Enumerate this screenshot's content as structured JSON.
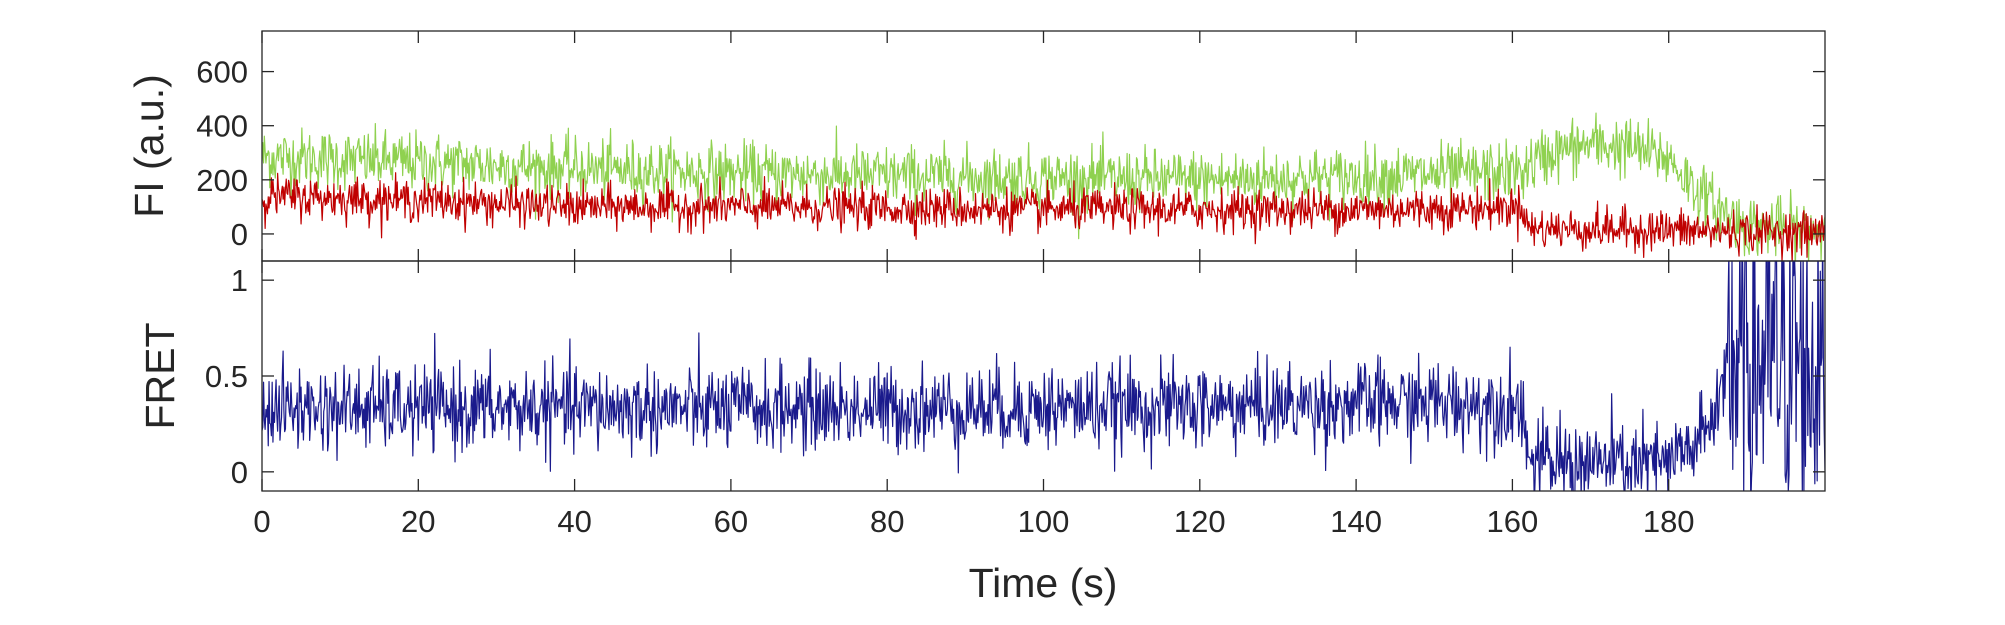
{
  "chart_data": [
    {
      "panel": "top",
      "type": "line",
      "xlabel": "",
      "ylabel": "FI (a.u.)",
      "xlim": [
        0,
        200
      ],
      "ylim": [
        -100,
        750
      ],
      "xticks": [
        0,
        20,
        40,
        60,
        80,
        100,
        120,
        140,
        160,
        180
      ],
      "yticks": [
        0,
        200,
        400,
        600
      ],
      "ytick_labels": [
        "0",
        "200",
        "400",
        "600"
      ],
      "show_xtick_labels": false,
      "grid": false,
      "sample_interval": 0.1,
      "series": [
        {
          "color": "#8fd14f",
          "x": [
            0,
            20,
            40,
            60,
            80,
            100,
            120,
            140,
            150,
            155,
            161,
            165,
            170,
            175,
            180,
            183,
            186,
            190,
            195,
            200
          ],
          "y": [
            285,
            265,
            240,
            225,
            215,
            205,
            200,
            210,
            220,
            225,
            230,
            300,
            330,
            320,
            280,
            180,
            100,
            30,
            20,
            15
          ],
          "noise": 55
        },
        {
          "color": "#c00000",
          "x": [
            0,
            20,
            40,
            60,
            80,
            100,
            120,
            140,
            155,
            161.5,
            162,
            180,
            185,
            200
          ],
          "y": [
            140,
            125,
            100,
            100,
            95,
            90,
            90,
            90,
            95,
            100,
            20,
            15,
            10,
            5
          ],
          "noise": 38
        }
      ]
    },
    {
      "panel": "bottom",
      "type": "line",
      "xlabel": "Time (s)",
      "ylabel": "FRET",
      "xlim": [
        0,
        200
      ],
      "ylim": [
        -0.1,
        1.1
      ],
      "xticks": [
        0,
        20,
        40,
        60,
        80,
        100,
        120,
        140,
        160,
        180
      ],
      "xtick_labels": [
        "0",
        "20",
        "40",
        "60",
        "80",
        "100",
        "120",
        "140",
        "160",
        "180"
      ],
      "yticks": [
        0,
        0.5,
        1
      ],
      "ytick_labels": [
        "0",
        "0.5",
        "1"
      ],
      "grid": false,
      "sample_interval": 0.1,
      "series": [
        {
          "color": "#1a1a8c",
          "x": [
            0,
            40,
            80,
            120,
            150,
            161.5,
            162,
            180,
            185,
            187.5,
            200
          ],
          "y": [
            0.33,
            0.33,
            0.33,
            0.34,
            0.36,
            0.35,
            0.05,
            0.04,
            0.2,
            0.55,
            0.55
          ],
          "noise": 0.11,
          "wild_after": 187.5
        }
      ]
    }
  ]
}
